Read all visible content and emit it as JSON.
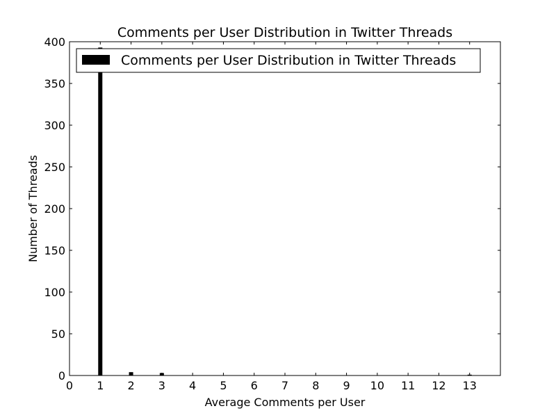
{
  "chart_data": {
    "type": "bar",
    "title": "Comments per User Distribution in Twitter Threads",
    "xlabel": "Average Comments per User",
    "ylabel": "Number of Threads",
    "x": [
      1,
      2,
      3,
      4,
      5,
      6,
      7,
      8,
      9,
      10,
      11,
      12,
      13
    ],
    "series": [
      {
        "name": "Comments per User Distribution in Twitter Threads",
        "values": [
          393,
          4,
          3,
          0,
          0,
          0,
          0,
          0,
          0,
          0,
          0,
          0,
          1
        ]
      }
    ],
    "xlim": [
      0,
      14
    ],
    "ylim": [
      0,
      400
    ],
    "xticks": [
      "0",
      "1",
      "2",
      "3",
      "4",
      "5",
      "6",
      "7",
      "8",
      "9",
      "10",
      "11",
      "12",
      "13"
    ],
    "yticks": [
      "0",
      "50",
      "100",
      "150",
      "200",
      "250",
      "300",
      "350",
      "400"
    ],
    "grid": false,
    "legend_position": "top-left",
    "bar_color": "#000000"
  }
}
